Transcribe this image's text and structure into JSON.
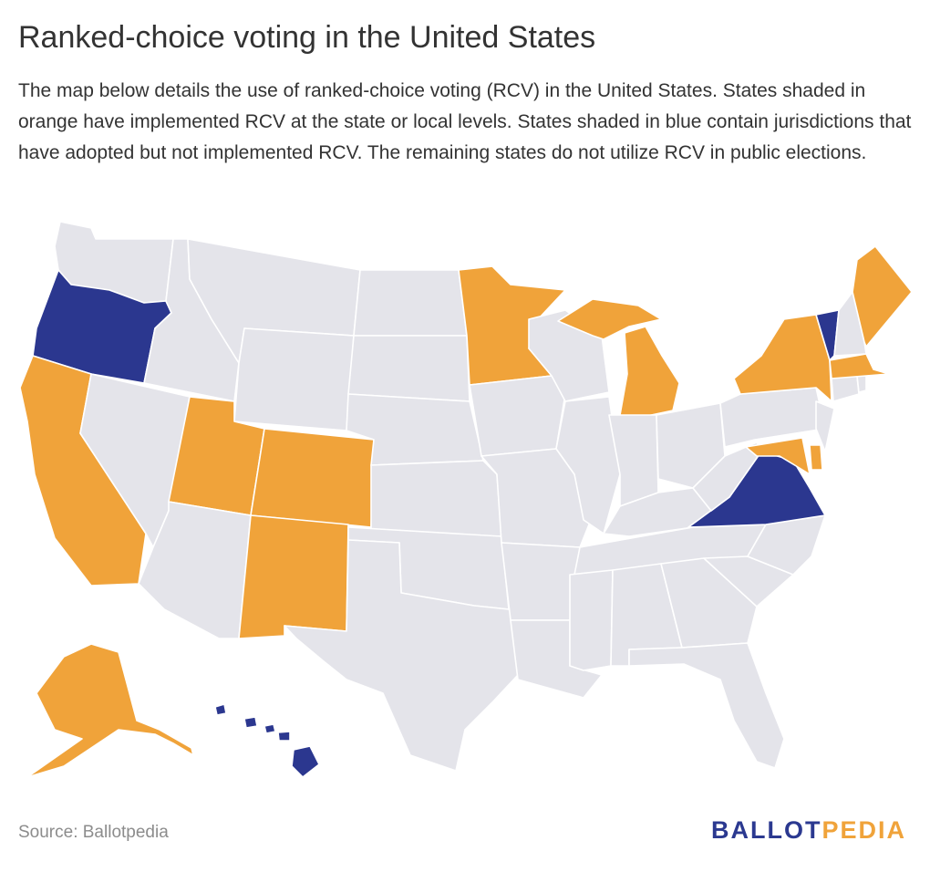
{
  "title": "Ranked-choice voting in the United States",
  "description": "The map below details the use of ranked-choice voting (RCV) in the United States. States shaded in orange have implemented RCV at the state or local levels. States shaded in blue contain jurisdictions that have adopted but not implemented RCV. The remaining states do not utilize RCV in public elections.",
  "source": "Source: Ballotpedia",
  "brand": {
    "part1": "BALLOT",
    "part2": "PEDIA",
    "color1": "#2b3990",
    "color2": "#f0a33a"
  },
  "colors": {
    "implemented": "#f0a33a",
    "adopted_not_implemented": "#2b378f",
    "none": "#e4e4ea"
  },
  "states": {
    "implemented": [
      "California",
      "Utah",
      "Colorado",
      "New Mexico",
      "Minnesota",
      "Michigan",
      "New York",
      "Maine",
      "Massachusetts",
      "Maryland",
      "Delaware",
      "Alaska"
    ],
    "adopted_not_implemented": [
      "Oregon",
      "Vermont",
      "Virginia",
      "Hawaii"
    ],
    "none": [
      "Washington",
      "Idaho",
      "Montana",
      "Wyoming",
      "Nevada",
      "Arizona",
      "North Dakota",
      "South Dakota",
      "Nebraska",
      "Kansas",
      "Oklahoma",
      "Texas",
      "Iowa",
      "Missouri",
      "Arkansas",
      "Louisiana",
      "Wisconsin",
      "Illinois",
      "Indiana",
      "Ohio",
      "Kentucky",
      "Tennessee",
      "Mississippi",
      "Alabama",
      "Georgia",
      "Florida",
      "South Carolina",
      "North Carolina",
      "West Virginia",
      "Pennsylvania",
      "New Jersey",
      "Connecticut",
      "Rhode Island",
      "New Hampshire"
    ]
  }
}
